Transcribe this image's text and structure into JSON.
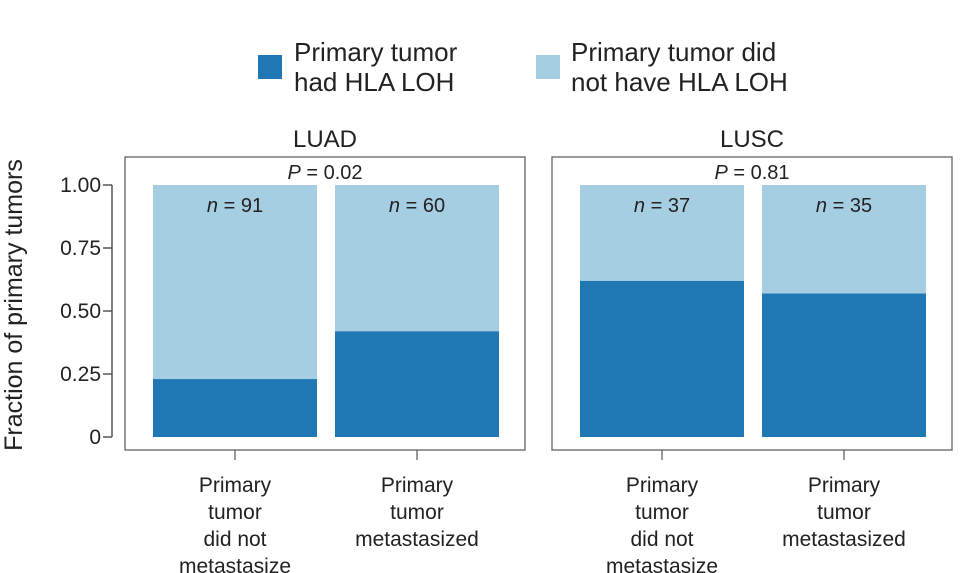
{
  "chart_data": {
    "type": "bar",
    "stacked": true,
    "normalized": true,
    "ylabel": "Fraction of primary tumors",
    "ylim": [
      0,
      1
    ],
    "yticks": [
      0,
      0.25,
      0.5,
      0.75,
      1.0
    ],
    "ytick_labels": [
      "0",
      "0.25",
      "0.50",
      "0.75",
      "1.00"
    ],
    "categories": [
      [
        "Primary",
        "tumor",
        "did not",
        "metastasize"
      ],
      [
        "Primary",
        "tumor",
        "metastasized"
      ]
    ],
    "legend": {
      "placement": "top",
      "entries": [
        {
          "lines": [
            "Primary tumor",
            "had HLA LOH"
          ],
          "color": "#1f78b4"
        },
        {
          "lines": [
            "Primary tumor did",
            "not have HLA LOH"
          ],
          "color": "#a6cee3"
        }
      ]
    },
    "panels": [
      {
        "title": "LUAD",
        "p_prefix": "P",
        "p_value": "= 0.02",
        "n_prefix": "n",
        "n_values": [
          "= 91",
          "= 60"
        ],
        "series": [
          {
            "name": "Primary tumor had HLA LOH",
            "values": [
              0.23,
              0.42
            ]
          },
          {
            "name": "Primary tumor did not have HLA LOH",
            "values": [
              0.77,
              0.58
            ]
          }
        ]
      },
      {
        "title": "LUSC",
        "p_prefix": "P",
        "p_value": "= 0.81",
        "n_prefix": "n",
        "n_values": [
          "= 37",
          "= 35"
        ],
        "series": [
          {
            "name": "Primary tumor had HLA LOH",
            "values": [
              0.62,
              0.57
            ]
          },
          {
            "name": "Primary tumor did not have HLA LOH",
            "values": [
              0.38,
              0.43
            ]
          }
        ]
      }
    ]
  }
}
